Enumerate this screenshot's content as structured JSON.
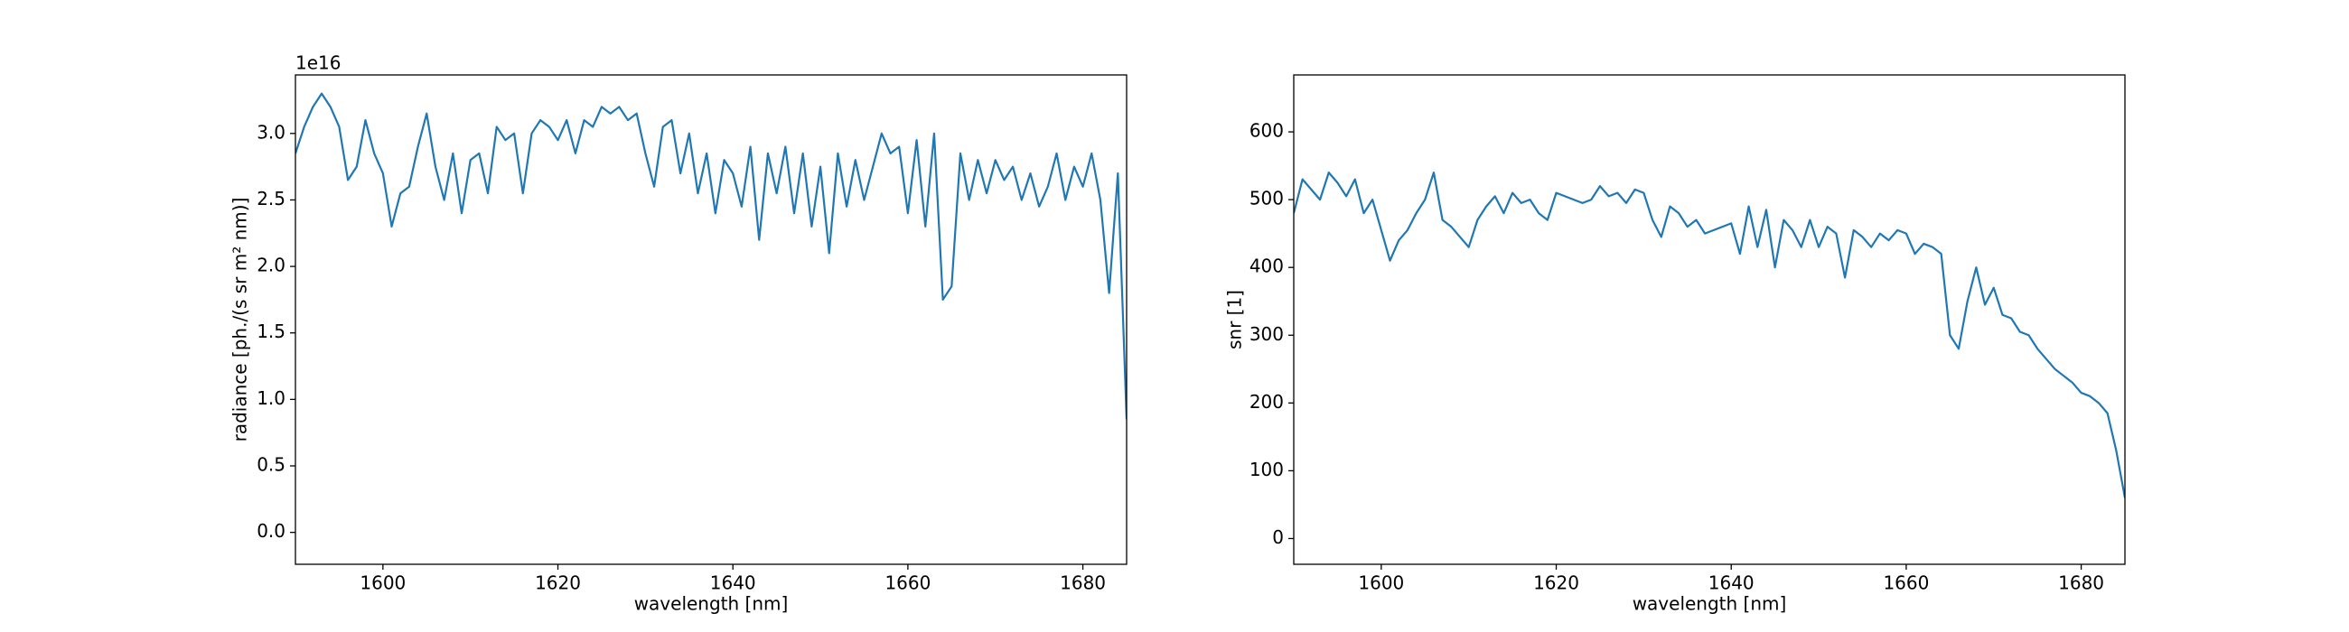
{
  "chart_data": [
    {
      "type": "line",
      "xlabel": "wavelength [nm]",
      "ylabel": "radiance [ph./(s sr m² nm)]",
      "offset_text": "1e16",
      "x": [
        1590,
        1591,
        1592,
        1593,
        1594,
        1595,
        1596,
        1597,
        1598,
        1599,
        1600,
        1601,
        1602,
        1603,
        1604,
        1605,
        1606,
        1607,
        1608,
        1609,
        1610,
        1611,
        1612,
        1613,
        1614,
        1615,
        1616,
        1617,
        1618,
        1619,
        1620,
        1621,
        1622,
        1623,
        1624,
        1625,
        1626,
        1627,
        1628,
        1629,
        1630,
        1631,
        1632,
        1633,
        1634,
        1635,
        1636,
        1637,
        1638,
        1639,
        1640,
        1641,
        1642,
        1643,
        1644,
        1645,
        1646,
        1647,
        1648,
        1649,
        1650,
        1651,
        1652,
        1653,
        1654,
        1655,
        1656,
        1657,
        1658,
        1659,
        1660,
        1661,
        1662,
        1663,
        1664,
        1665,
        1666,
        1667,
        1668,
        1669,
        1670,
        1671,
        1672,
        1673,
        1674,
        1675,
        1676,
        1677,
        1678,
        1679,
        1680,
        1681,
        1682,
        1683,
        1684,
        1685
      ],
      "values": [
        2.85,
        3.05,
        3.2,
        3.3,
        3.2,
        3.05,
        2.65,
        2.75,
        3.1,
        2.85,
        2.7,
        2.3,
        2.55,
        2.6,
        2.9,
        3.15,
        2.75,
        2.5,
        2.85,
        2.4,
        2.8,
        2.85,
        2.55,
        3.05,
        2.95,
        3.0,
        2.55,
        3.0,
        3.1,
        3.05,
        2.95,
        3.1,
        2.85,
        3.1,
        3.05,
        3.2,
        3.15,
        3.2,
        3.1,
        3.15,
        2.85,
        2.6,
        3.05,
        3.1,
        2.7,
        3.0,
        2.55,
        2.85,
        2.4,
        2.8,
        2.7,
        2.45,
        2.9,
        2.2,
        2.85,
        2.55,
        2.9,
        2.4,
        2.85,
        2.3,
        2.75,
        2.1,
        2.85,
        2.45,
        2.8,
        2.5,
        2.75,
        3.0,
        2.85,
        2.9,
        2.4,
        2.95,
        2.3,
        3.0,
        1.75,
        1.85,
        2.85,
        2.5,
        2.8,
        2.55,
        2.8,
        2.65,
        2.75,
        2.5,
        2.7,
        2.45,
        2.6,
        2.85,
        2.5,
        2.75,
        2.6,
        2.85,
        2.5,
        1.8,
        2.7,
        0.85
      ],
      "color": "#1f77b4",
      "xlim": [
        1590,
        1685
      ],
      "xticks": [
        1600,
        1620,
        1640,
        1660,
        1680
      ],
      "ylim": [
        -0.24,
        3.44
      ],
      "yticks": [
        {
          "value": 0,
          "label": "0.0"
        },
        {
          "value": 0.5,
          "label": "0.5"
        },
        {
          "value": 1,
          "label": "1.0"
        },
        {
          "value": 1.5,
          "label": "1.5"
        },
        {
          "value": 2,
          "label": "2.0"
        },
        {
          "value": 2.5,
          "label": "2.5"
        },
        {
          "value": 3,
          "label": "3.0"
        }
      ]
    },
    {
      "type": "line",
      "xlabel": "wavelength [nm]",
      "ylabel": "snr [1]",
      "x": [
        1590,
        1591,
        1592,
        1593,
        1594,
        1595,
        1596,
        1597,
        1598,
        1599,
        1600,
        1601,
        1602,
        1603,
        1604,
        1605,
        1606,
        1607,
        1608,
        1609,
        1610,
        1611,
        1612,
        1613,
        1614,
        1615,
        1616,
        1617,
        1618,
        1619,
        1620,
        1621,
        1622,
        1623,
        1624,
        1625,
        1626,
        1627,
        1628,
        1629,
        1630,
        1631,
        1632,
        1633,
        1634,
        1635,
        1636,
        1637,
        1638,
        1639,
        1640,
        1641,
        1642,
        1643,
        1644,
        1645,
        1646,
        1647,
        1648,
        1649,
        1650,
        1651,
        1652,
        1653,
        1654,
        1655,
        1656,
        1657,
        1658,
        1659,
        1660,
        1661,
        1662,
        1663,
        1664,
        1665,
        1666,
        1667,
        1668,
        1669,
        1670,
        1671,
        1672,
        1673,
        1674,
        1675,
        1676,
        1677,
        1678,
        1679,
        1680,
        1681,
        1682,
        1683,
        1684,
        1685
      ],
      "values": [
        480,
        530,
        515,
        500,
        540,
        525,
        505,
        530,
        480,
        500,
        455,
        410,
        440,
        455,
        480,
        500,
        540,
        470,
        460,
        445,
        430,
        470,
        490,
        505,
        480,
        510,
        495,
        500,
        480,
        470,
        510,
        505,
        500,
        495,
        500,
        520,
        505,
        510,
        495,
        515,
        510,
        470,
        445,
        490,
        480,
        460,
        470,
        450,
        455,
        460,
        465,
        420,
        490,
        430,
        485,
        400,
        470,
        455,
        430,
        470,
        430,
        460,
        450,
        385,
        455,
        445,
        430,
        450,
        440,
        455,
        450,
        420,
        435,
        430,
        420,
        300,
        280,
        350,
        400,
        345,
        370,
        330,
        325,
        305,
        300,
        280,
        265,
        250,
        240,
        230,
        215,
        210,
        200,
        185,
        130,
        60
      ],
      "color": "#1f77b4",
      "xlim": [
        1590,
        1685
      ],
      "xticks": [
        1600,
        1620,
        1640,
        1660,
        1680
      ],
      "ylim": [
        -38,
        684
      ],
      "yticks": [
        0,
        100,
        200,
        300,
        400,
        500,
        600
      ]
    }
  ]
}
